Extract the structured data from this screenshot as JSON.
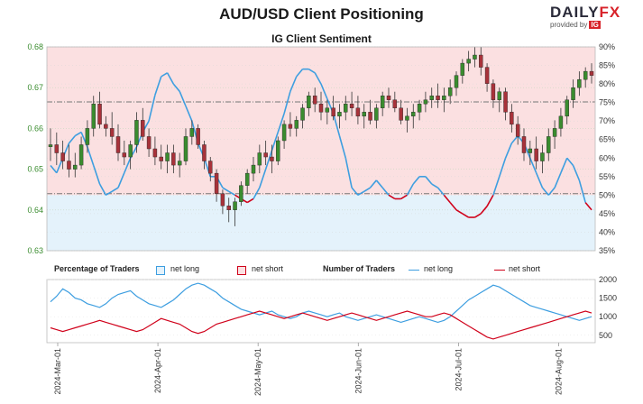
{
  "header": {
    "title": "AUD/USD Client Positioning",
    "subtitle": "IG Client Sentiment",
    "logo_text_a": "DAILY",
    "logo_text_b": "FX",
    "logo_provided": "provided by",
    "logo_ig": "IG"
  },
  "colors": {
    "net_long": "#3d9ee0",
    "net_short": "#d0021b",
    "bull_candle": "#3a8c2f",
    "bear_candle": "#a8323a",
    "upper_fill": "#fbe0e1",
    "lower_fill": "#e4f2fb",
    "price_axis": "#3a8c2f"
  },
  "chart_data": [
    {
      "type": "line",
      "title": "IG Client Sentiment",
      "x_tick_labels": [
        "2024-Mar-01",
        "2024-Apr-01",
        "2024-May-01",
        "2024-Jun-01",
        "2024-Jul-01",
        "2024-Aug-01"
      ],
      "price_axis": {
        "ticks": [
          "0.63",
          "0.64",
          "0.65",
          "0.66",
          "0.67",
          "0.68"
        ],
        "ylim": [
          0.63,
          0.68
        ]
      },
      "percent_axis": {
        "ticks": [
          "35%",
          "40%",
          "45%",
          "50%",
          "55%",
          "60%",
          "65%",
          "70%",
          "75%",
          "80%",
          "85%",
          "90%"
        ],
        "ylim": [
          35,
          90
        ]
      },
      "reference_lines": [
        0.644,
        0.6665
      ],
      "candles_ohlc": [
        [
          0.6555,
          0.66,
          0.652,
          0.656
        ],
        [
          0.656,
          0.659,
          0.651,
          0.654
        ],
        [
          0.654,
          0.657,
          0.65,
          0.652
        ],
        [
          0.652,
          0.656,
          0.648,
          0.65
        ],
        [
          0.65,
          0.654,
          0.648,
          0.651
        ],
        [
          0.651,
          0.658,
          0.65,
          0.656
        ],
        [
          0.656,
          0.662,
          0.654,
          0.66
        ],
        [
          0.66,
          0.668,
          0.658,
          0.666
        ],
        [
          0.666,
          0.669,
          0.66,
          0.661
        ],
        [
          0.661,
          0.663,
          0.658,
          0.66
        ],
        [
          0.66,
          0.664,
          0.656,
          0.658
        ],
        [
          0.658,
          0.661,
          0.652,
          0.654
        ],
        [
          0.654,
          0.657,
          0.651,
          0.653
        ],
        [
          0.653,
          0.657,
          0.65,
          0.656
        ],
        [
          0.656,
          0.664,
          0.654,
          0.662
        ],
        [
          0.662,
          0.665,
          0.657,
          0.658
        ],
        [
          0.658,
          0.66,
          0.653,
          0.655
        ],
        [
          0.655,
          0.658,
          0.651,
          0.653
        ],
        [
          0.653,
          0.656,
          0.65,
          0.652
        ],
        [
          0.652,
          0.656,
          0.649,
          0.654
        ],
        [
          0.654,
          0.656,
          0.649,
          0.651
        ],
        [
          0.651,
          0.654,
          0.648,
          0.652
        ],
        [
          0.652,
          0.66,
          0.651,
          0.658
        ],
        [
          0.658,
          0.662,
          0.656,
          0.66
        ],
        [
          0.66,
          0.661,
          0.655,
          0.656
        ],
        [
          0.656,
          0.657,
          0.65,
          0.652
        ],
        [
          0.652,
          0.653,
          0.647,
          0.649
        ],
        [
          0.649,
          0.65,
          0.642,
          0.644
        ],
        [
          0.644,
          0.645,
          0.639,
          0.641
        ],
        [
          0.641,
          0.643,
          0.637,
          0.64
        ],
        [
          0.64,
          0.643,
          0.636,
          0.642
        ],
        [
          0.642,
          0.647,
          0.641,
          0.646
        ],
        [
          0.646,
          0.65,
          0.644,
          0.649
        ],
        [
          0.649,
          0.653,
          0.647,
          0.651
        ],
        [
          0.651,
          0.656,
          0.649,
          0.654
        ],
        [
          0.654,
          0.657,
          0.651,
          0.653
        ],
        [
          0.653,
          0.656,
          0.649,
          0.652
        ],
        [
          0.652,
          0.658,
          0.651,
          0.657
        ],
        [
          0.657,
          0.662,
          0.655,
          0.661
        ],
        [
          0.661,
          0.664,
          0.658,
          0.66
        ],
        [
          0.66,
          0.663,
          0.658,
          0.662
        ],
        [
          0.662,
          0.666,
          0.66,
          0.665
        ],
        [
          0.665,
          0.669,
          0.663,
          0.668
        ],
        [
          0.668,
          0.67,
          0.664,
          0.666
        ],
        [
          0.666,
          0.669,
          0.662,
          0.664
        ],
        [
          0.664,
          0.667,
          0.661,
          0.665
        ],
        [
          0.665,
          0.668,
          0.662,
          0.663
        ],
        [
          0.663,
          0.666,
          0.66,
          0.664
        ],
        [
          0.664,
          0.668,
          0.662,
          0.666
        ],
        [
          0.666,
          0.669,
          0.663,
          0.665
        ],
        [
          0.665,
          0.668,
          0.661,
          0.663
        ],
        [
          0.663,
          0.666,
          0.66,
          0.664
        ],
        [
          0.664,
          0.667,
          0.661,
          0.662
        ],
        [
          0.662,
          0.666,
          0.66,
          0.665
        ],
        [
          0.665,
          0.669,
          0.663,
          0.668
        ],
        [
          0.668,
          0.67,
          0.665,
          0.667
        ],
        [
          0.667,
          0.669,
          0.664,
          0.665
        ],
        [
          0.665,
          0.667,
          0.661,
          0.662
        ],
        [
          0.662,
          0.665,
          0.659,
          0.663
        ],
        [
          0.663,
          0.666,
          0.66,
          0.664
        ],
        [
          0.664,
          0.667,
          0.662,
          0.666
        ],
        [
          0.666,
          0.669,
          0.664,
          0.667
        ],
        [
          0.667,
          0.67,
          0.665,
          0.668
        ],
        [
          0.668,
          0.671,
          0.665,
          0.667
        ],
        [
          0.667,
          0.67,
          0.664,
          0.668
        ],
        [
          0.668,
          0.672,
          0.666,
          0.67
        ],
        [
          0.67,
          0.674,
          0.668,
          0.673
        ],
        [
          0.673,
          0.677,
          0.671,
          0.676
        ],
        [
          0.676,
          0.679,
          0.674,
          0.677
        ],
        [
          0.677,
          0.68,
          0.675,
          0.678
        ],
        [
          0.678,
          0.68,
          0.673,
          0.675
        ],
        [
          0.675,
          0.676,
          0.669,
          0.671
        ],
        [
          0.671,
          0.672,
          0.665,
          0.667
        ],
        [
          0.667,
          0.67,
          0.664,
          0.669
        ],
        [
          0.669,
          0.67,
          0.662,
          0.664
        ],
        [
          0.664,
          0.666,
          0.659,
          0.661
        ],
        [
          0.661,
          0.663,
          0.656,
          0.658
        ],
        [
          0.658,
          0.66,
          0.652,
          0.654
        ],
        [
          0.654,
          0.657,
          0.651,
          0.655
        ],
        [
          0.655,
          0.658,
          0.65,
          0.652
        ],
        [
          0.652,
          0.656,
          0.649,
          0.654
        ],
        [
          0.654,
          0.66,
          0.652,
          0.658
        ],
        [
          0.658,
          0.662,
          0.655,
          0.66
        ],
        [
          0.66,
          0.665,
          0.658,
          0.663
        ],
        [
          0.663,
          0.668,
          0.661,
          0.667
        ],
        [
          0.667,
          0.672,
          0.665,
          0.67
        ],
        [
          0.67,
          0.674,
          0.668,
          0.672
        ],
        [
          0.672,
          0.675,
          0.67,
          0.674
        ],
        [
          0.674,
          0.676,
          0.671,
          0.673
        ]
      ],
      "series": [
        {
          "name": "net long",
          "values": [
            58,
            56,
            60,
            64,
            66,
            67,
            63,
            58,
            53,
            50,
            51,
            52,
            56,
            60,
            63,
            67,
            70,
            77,
            82,
            83,
            80,
            78,
            74,
            70,
            64,
            60,
            55,
            55,
            52,
            51,
            50,
            49,
            48,
            49,
            52,
            57,
            62,
            67,
            72,
            78,
            82,
            84,
            84,
            83,
            80,
            76,
            72,
            66,
            60,
            52,
            50,
            51,
            52,
            54,
            52,
            50,
            49,
            49,
            50,
            53,
            55,
            55,
            53,
            52,
            50,
            48,
            46,
            45,
            44,
            44,
            45,
            47,
            50,
            55,
            60,
            64,
            66,
            64,
            60,
            56,
            52,
            50,
            52,
            56,
            60,
            58,
            54,
            48,
            46
          ]
        },
        {
          "name": "net short",
          "values": [
            42,
            44,
            40,
            36,
            34,
            33,
            37,
            42,
            47,
            50,
            49,
            48,
            44,
            40,
            37,
            33,
            30,
            23,
            18,
            17,
            20,
            22,
            26,
            30,
            36,
            40,
            45,
            45,
            48,
            49,
            50,
            51,
            52,
            51,
            48,
            43,
            38,
            33,
            28,
            22,
            18,
            16,
            16,
            17,
            20,
            24,
            28,
            34,
            40,
            48,
            50,
            49,
            48,
            46,
            48,
            50,
            51,
            51,
            50,
            47,
            45,
            45,
            47,
            48,
            50,
            52,
            54,
            55,
            56,
            56,
            55,
            53,
            50,
            45,
            40,
            36,
            34,
            36,
            40,
            44,
            48,
            50,
            48,
            44,
            40,
            42,
            46,
            52,
            54
          ]
        }
      ]
    },
    {
      "type": "line",
      "title": "Number of Traders",
      "y_ticks": [
        "500",
        "1000",
        "1500",
        "2000"
      ],
      "ylim": [
        300,
        2000
      ],
      "series": [
        {
          "name": "net long",
          "values": [
            1400,
            1550,
            1750,
            1650,
            1500,
            1450,
            1350,
            1300,
            1250,
            1350,
            1500,
            1600,
            1650,
            1700,
            1550,
            1450,
            1350,
            1300,
            1250,
            1350,
            1450,
            1600,
            1750,
            1850,
            1900,
            1850,
            1750,
            1650,
            1500,
            1400,
            1300,
            1200,
            1150,
            1100,
            1050,
            1100,
            1150,
            1050,
            1000,
            950,
            1000,
            1100,
            1150,
            1100,
            1050,
            1000,
            1050,
            1100,
            1000,
            950,
            900,
            950,
            1000,
            1050,
            1000,
            950,
            900,
            850,
            900,
            950,
            1000,
            950,
            900,
            850,
            900,
            1000,
            1150,
            1300,
            1450,
            1550,
            1650,
            1750,
            1850,
            1800,
            1700,
            1600,
            1500,
            1400,
            1300,
            1250,
            1200,
            1150,
            1100,
            1050,
            1000,
            950,
            900,
            950,
            1000
          ]
        },
        {
          "name": "net short",
          "values": [
            700,
            650,
            600,
            650,
            700,
            750,
            800,
            850,
            900,
            850,
            800,
            750,
            700,
            650,
            600,
            650,
            750,
            850,
            950,
            900,
            850,
            800,
            700,
            600,
            550,
            600,
            700,
            800,
            850,
            900,
            950,
            1000,
            1050,
            1100,
            1150,
            1100,
            1050,
            1000,
            950,
            1000,
            1050,
            1100,
            1050,
            1000,
            950,
            900,
            950,
            1000,
            1050,
            1100,
            1050,
            1000,
            950,
            900,
            950,
            1000,
            1050,
            1100,
            1150,
            1100,
            1050,
            1000,
            1000,
            1050,
            1100,
            1050,
            950,
            850,
            750,
            650,
            550,
            450,
            400,
            450,
            500,
            550,
            600,
            650,
            700,
            750,
            800,
            850,
            900,
            950,
            1000,
            1050,
            1100,
            1150,
            1100
          ]
        }
      ]
    }
  ],
  "legend": {
    "pct_heading": "Percentage of Traders",
    "pct_long": "net long",
    "pct_short": "net short",
    "num_heading": "Number of Traders",
    "num_long": "net long",
    "num_short": "net short"
  }
}
